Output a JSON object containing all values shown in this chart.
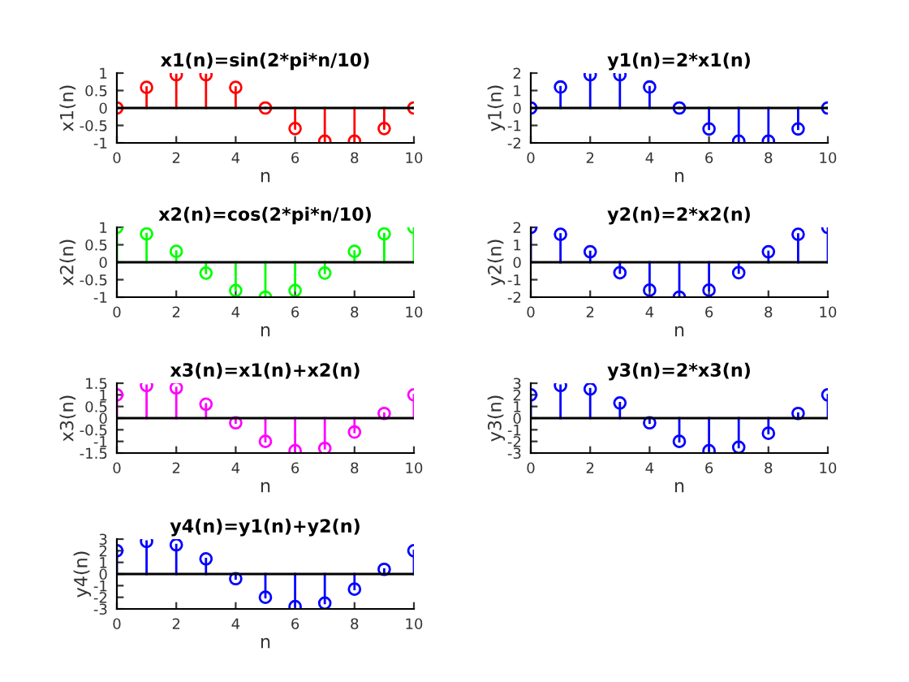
{
  "chart_data": [
    {
      "type": "lollipop",
      "title": "x1(n)=sin(2*pi*n/10)",
      "xlabel": "n",
      "ylabel": "x1(n)",
      "x": [
        0,
        1,
        2,
        3,
        4,
        5,
        6,
        7,
        8,
        9,
        10
      ],
      "series": [
        {
          "color": "#ff0000",
          "values": [
            0,
            0.59,
            0.95,
            0.95,
            0.59,
            0,
            -0.59,
            -0.95,
            -0.95,
            -0.59,
            0
          ]
        }
      ],
      "xlim": [
        0,
        10
      ],
      "xticks": [
        0,
        2,
        4,
        6,
        8,
        10
      ],
      "ylim": [
        -1,
        1
      ],
      "yticks": [
        -1,
        -0.5,
        0,
        0.5,
        1
      ],
      "marker": "circle"
    },
    {
      "type": "lollipop",
      "title": "y1(n)=2*x1(n)",
      "xlabel": "n",
      "ylabel": "y1(n)",
      "x": [
        0,
        1,
        2,
        3,
        4,
        5,
        6,
        7,
        8,
        9,
        10
      ],
      "series": [
        {
          "color": "#0000ff",
          "values": [
            0,
            1.2,
            1.9,
            1.9,
            1.2,
            0,
            -1.2,
            -1.9,
            -1.9,
            -1.2,
            0
          ]
        }
      ],
      "xlim": [
        0,
        10
      ],
      "xticks": [
        0,
        2,
        4,
        6,
        8,
        10
      ],
      "ylim": [
        -2,
        2
      ],
      "yticks": [
        -2,
        -1,
        0,
        1,
        2
      ],
      "marker": "circle"
    },
    {
      "type": "lollipop",
      "title": "x2(n)=cos(2*pi*n/10)",
      "xlabel": "n",
      "ylabel": "x2(n)",
      "x": [
        0,
        1,
        2,
        3,
        4,
        5,
        6,
        7,
        8,
        9,
        10
      ],
      "series": [
        {
          "color": "#00ff00",
          "values": [
            1,
            0.81,
            0.31,
            -0.31,
            -0.81,
            -1,
            -0.81,
            -0.31,
            0.31,
            0.81,
            1
          ]
        }
      ],
      "xlim": [
        0,
        10
      ],
      "xticks": [
        0,
        2,
        4,
        6,
        8,
        10
      ],
      "ylim": [
        -1,
        1
      ],
      "yticks": [
        -1,
        -0.5,
        0,
        0.5,
        1
      ],
      "marker": "circle"
    },
    {
      "type": "lollipop",
      "title": "y2(n)=2*x2(n)",
      "xlabel": "n",
      "ylabel": "y2(n)",
      "x": [
        0,
        1,
        2,
        3,
        4,
        5,
        6,
        7,
        8,
        9,
        10
      ],
      "series": [
        {
          "color": "#0000ff",
          "values": [
            2,
            1.6,
            0.6,
            -0.6,
            -1.6,
            -2,
            -1.6,
            -0.6,
            0.6,
            1.6,
            2
          ]
        }
      ],
      "xlim": [
        0,
        10
      ],
      "xticks": [
        0,
        2,
        4,
        6,
        8,
        10
      ],
      "ylim": [
        -2,
        2
      ],
      "yticks": [
        -2,
        -1,
        0,
        1,
        2
      ],
      "marker": "circle"
    },
    {
      "type": "lollipop",
      "title": "x3(n)=x1(n)+x2(n)",
      "xlabel": "n",
      "ylabel": "x3(n)",
      "x": [
        0,
        1,
        2,
        3,
        4,
        5,
        6,
        7,
        8,
        9,
        10
      ],
      "series": [
        {
          "color": "#ff00ff",
          "values": [
            1,
            1.4,
            1.3,
            0.6,
            -0.2,
            -1,
            -1.4,
            -1.3,
            -0.6,
            0.2,
            1
          ]
        }
      ],
      "xlim": [
        0,
        10
      ],
      "xticks": [
        0,
        2,
        4,
        6,
        8,
        10
      ],
      "ylim": [
        -1.5,
        1.5
      ],
      "yticks": [
        -1.5,
        -1,
        -0.5,
        0,
        0.5,
        1,
        1.5
      ],
      "marker": "circle"
    },
    {
      "type": "lollipop",
      "title": "y3(n)=2*x3(n)",
      "xlabel": "n",
      "ylabel": "y3(n)",
      "x": [
        0,
        1,
        2,
        3,
        4,
        5,
        6,
        7,
        8,
        9,
        10
      ],
      "series": [
        {
          "color": "#0000ff",
          "values": [
            2,
            2.8,
            2.5,
            1.3,
            -0.4,
            -2,
            -2.8,
            -2.5,
            -1.3,
            0.4,
            2
          ]
        }
      ],
      "xlim": [
        0,
        10
      ],
      "xticks": [
        0,
        2,
        4,
        6,
        8,
        10
      ],
      "ylim": [
        -3,
        3
      ],
      "yticks": [
        -3,
        -2,
        -1,
        0,
        1,
        2,
        3
      ],
      "marker": "circle"
    },
    {
      "type": "lollipop",
      "title": "y4(n)=y1(n)+y2(n)",
      "xlabel": "n",
      "ylabel": "y4(n)",
      "x": [
        0,
        1,
        2,
        3,
        4,
        5,
        6,
        7,
        8,
        9,
        10
      ],
      "series": [
        {
          "color": "#0000ff",
          "values": [
            2,
            2.8,
            2.5,
            1.3,
            -0.4,
            -2,
            -2.8,
            -2.5,
            -1.3,
            0.4,
            2
          ]
        }
      ],
      "xlim": [
        0,
        10
      ],
      "xticks": [
        0,
        2,
        4,
        6,
        8,
        10
      ],
      "ylim": [
        -3,
        3
      ],
      "yticks": [
        -3,
        -2,
        -1,
        0,
        1,
        2,
        3
      ],
      "marker": "circle"
    }
  ]
}
